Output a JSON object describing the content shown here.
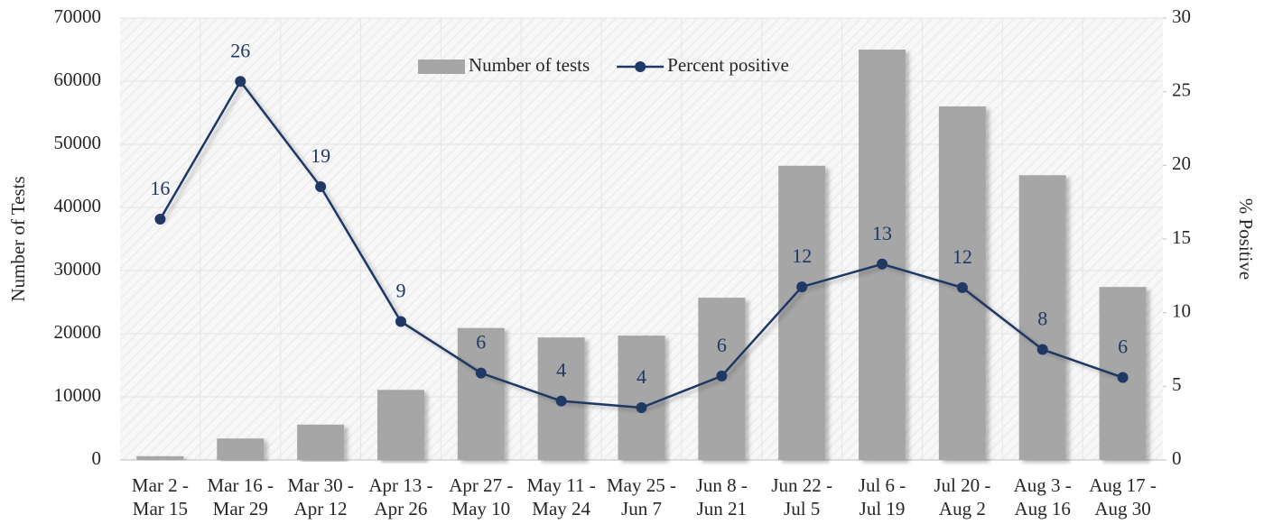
{
  "chart_data": {
    "type": "bar_line",
    "categories": [
      [
        "Mar 2 -",
        "Mar 15"
      ],
      [
        "Mar 16 -",
        "Mar 29"
      ],
      [
        "Mar 30 -",
        "Apr 12"
      ],
      [
        "Apr 13 -",
        "Apr 26"
      ],
      [
        "Apr 27 -",
        "May 10"
      ],
      [
        "May 11 -",
        "May 24"
      ],
      [
        "May 25 -",
        "Jun 7"
      ],
      [
        "Jun 8 -",
        "Jun 21"
      ],
      [
        "Jun 22 -",
        "Jul 5"
      ],
      [
        "Jul 6 -",
        "Jul 19"
      ],
      [
        "Jul 20 -",
        "Aug 2"
      ],
      [
        "Aug 3 -",
        "Aug 16"
      ],
      [
        "Aug 17 -",
        "Aug 30"
      ]
    ],
    "series": [
      {
        "name": "Number of tests",
        "type": "bar",
        "color": "#a6a6a6",
        "values": [
          600,
          3400,
          5600,
          11100,
          20900,
          19400,
          19700,
          25700,
          46600,
          65000,
          56000,
          45100,
          27400
        ]
      },
      {
        "name": "Percent positive",
        "type": "line",
        "axis": "y2",
        "color": "#1f3864",
        "values": [
          16.35,
          25.7,
          18.55,
          9.4,
          5.9,
          4.0,
          3.55,
          5.7,
          11.75,
          13.3,
          11.7,
          7.5,
          5.6
        ],
        "value_labels": [
          "16",
          "26",
          "19",
          "9",
          "6",
          "4",
          "4",
          "6",
          "12",
          "13",
          "12",
          "8",
          "6"
        ]
      }
    ],
    "ylabel": "Number of Tests",
    "y2label": "% Positive",
    "ylim": [
      0,
      70000
    ],
    "yticks": [
      0,
      10000,
      20000,
      30000,
      40000,
      50000,
      60000,
      70000
    ],
    "y2lim": [
      0,
      30
    ],
    "y2ticks": [
      0,
      5,
      10,
      15,
      20,
      25,
      30
    ],
    "grid": true,
    "legend": "top"
  }
}
